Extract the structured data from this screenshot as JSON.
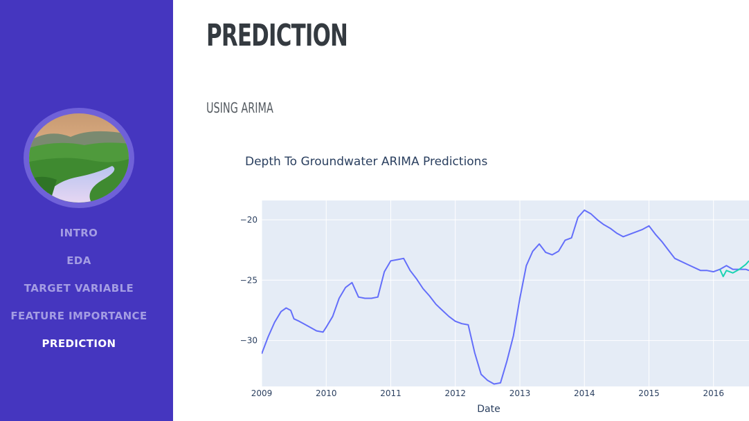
{
  "sidebar": {
    "image": "meadow-stream-photo",
    "nav": [
      {
        "label": "INTRO",
        "active": false
      },
      {
        "label": "EDA",
        "active": false
      },
      {
        "label": "TARGET VARIABLE",
        "active": false
      },
      {
        "label": "FEATURE IMPORTANCE",
        "active": false
      },
      {
        "label": "PREDICTION",
        "active": true
      }
    ]
  },
  "main": {
    "page_title": "PREDICTION",
    "section_title": "USING ARIMA"
  },
  "chart_data": {
    "type": "line",
    "title": "Depth To Groundwater ARIMA Predictions",
    "xlabel": "Date",
    "ylabel": "",
    "x_tick_labels": [
      "2009",
      "2010",
      "2011",
      "2012",
      "2013",
      "2014",
      "2015",
      "2016"
    ],
    "y_tick_labels": [
      "−20",
      "−25",
      "−30"
    ],
    "y_ticks": [
      -20,
      -25,
      -30
    ],
    "xlim": [
      2009.0,
      2016.55
    ],
    "ylim": [
      -33.8,
      -18.4
    ],
    "grid": true,
    "legend": "none",
    "background": "#e5ecf6",
    "series": [
      {
        "color": "#636efa",
        "x": [
          2009.0,
          2009.1,
          2009.2,
          2009.3,
          2009.38,
          2009.45,
          2009.5,
          2009.58,
          2009.65,
          2009.75,
          2009.85,
          2009.95,
          2010.0,
          2010.1,
          2010.2,
          2010.3,
          2010.4,
          2010.5,
          2010.6,
          2010.7,
          2010.8,
          2010.9,
          2011.0,
          2011.1,
          2011.2,
          2011.3,
          2011.4,
          2011.5,
          2011.6,
          2011.7,
          2011.8,
          2011.9,
          2012.0,
          2012.1,
          2012.2,
          2012.3,
          2012.4,
          2012.5,
          2012.6,
          2012.7,
          2012.8,
          2012.9,
          2013.0,
          2013.1,
          2013.2,
          2013.3,
          2013.4,
          2013.5,
          2013.6,
          2013.7,
          2013.8,
          2013.9,
          2014.0,
          2014.1,
          2014.2,
          2014.3,
          2014.4,
          2014.5,
          2014.6,
          2014.7,
          2014.8,
          2014.9,
          2015.0,
          2015.1,
          2015.2,
          2015.3,
          2015.4,
          2015.6,
          2015.8,
          2015.9,
          2016.0,
          2016.1,
          2016.2,
          2016.3,
          2016.4,
          2016.5,
          2016.55
        ],
        "values": [
          -31.1,
          -29.7,
          -28.5,
          -27.6,
          -27.3,
          -27.5,
          -28.2,
          -28.4,
          -28.6,
          -28.9,
          -29.2,
          -29.3,
          -28.9,
          -28.0,
          -26.5,
          -25.6,
          -25.2,
          -26.4,
          -26.5,
          -26.5,
          -26.4,
          -24.3,
          -23.4,
          -23.3,
          -23.2,
          -24.2,
          -24.9,
          -25.7,
          -26.3,
          -27.0,
          -27.5,
          -28.0,
          -28.4,
          -28.6,
          -28.7,
          -31.0,
          -32.8,
          -33.3,
          -33.6,
          -33.5,
          -31.7,
          -29.6,
          -26.5,
          -23.8,
          -22.6,
          -22.0,
          -22.7,
          -22.9,
          -22.6,
          -21.7,
          -21.5,
          -19.8,
          -19.2,
          -19.5,
          -20.0,
          -20.4,
          -20.7,
          -21.1,
          -21.4,
          -21.2,
          -21.0,
          -20.8,
          -20.5,
          -21.2,
          -21.8,
          -22.5,
          -23.2,
          -23.7,
          -24.2,
          -24.2,
          -24.3,
          -24.1,
          -23.8,
          -24.1,
          -24.1,
          -24.1,
          -24.2
        ]
      },
      {
        "color": "#19d3b3",
        "x": [
          2016.1,
          2016.15,
          2016.2,
          2016.3,
          2016.4,
          2016.5,
          2016.55
        ],
        "values": [
          -24.1,
          -24.7,
          -24.2,
          -24.4,
          -24.1,
          -23.7,
          -23.4
        ]
      }
    ]
  }
}
